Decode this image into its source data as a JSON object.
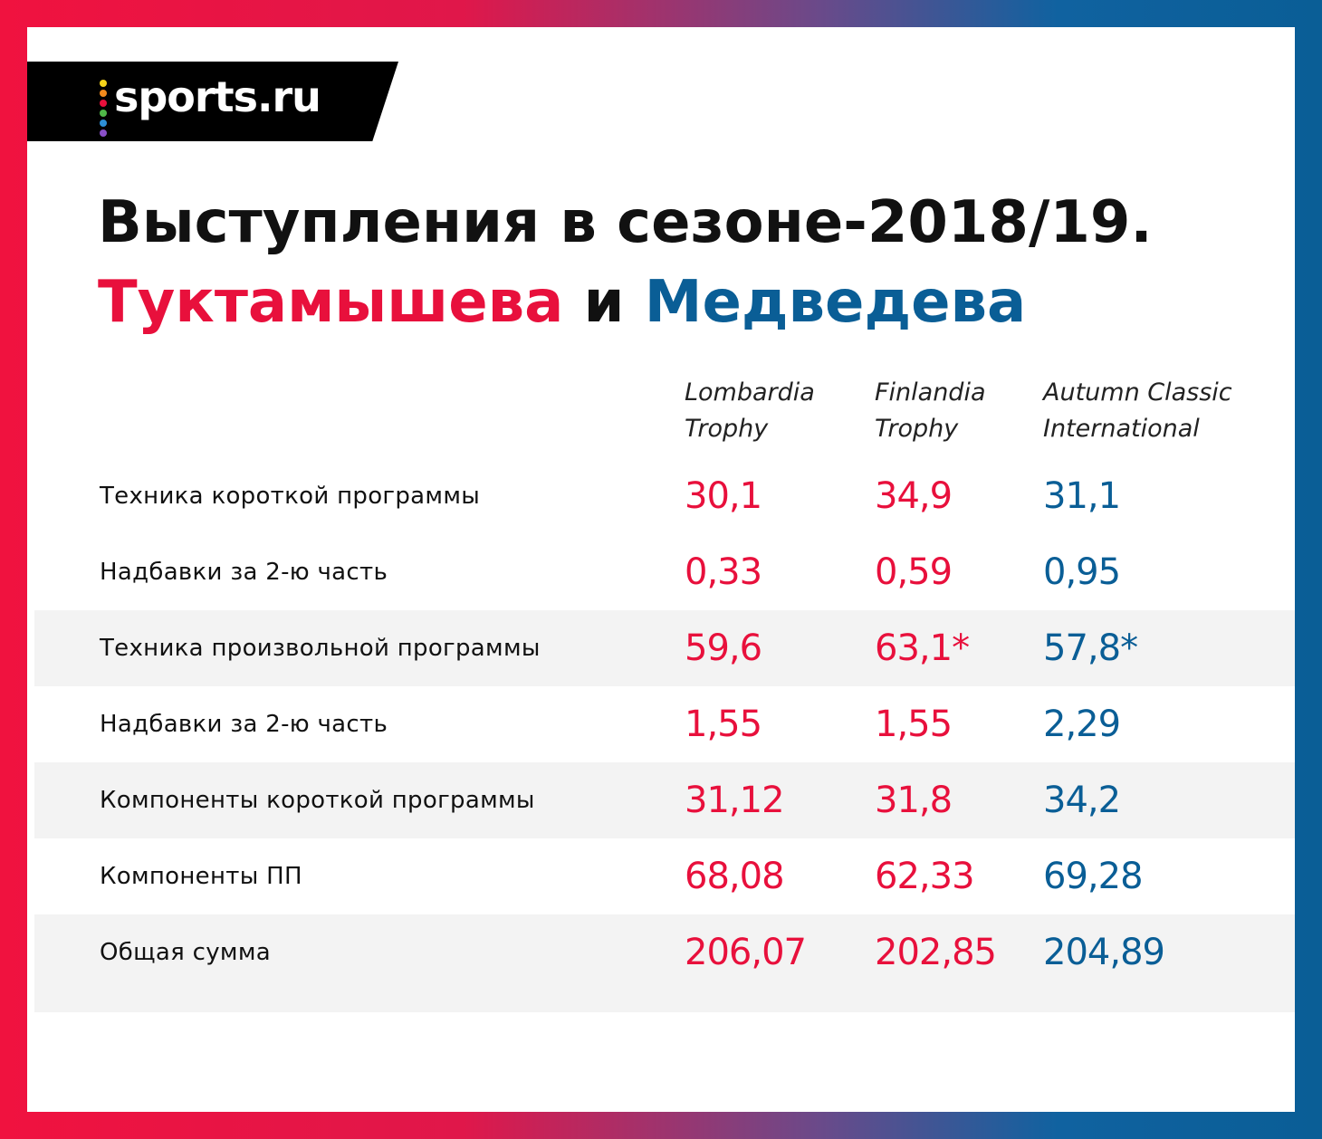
{
  "brand": {
    "name": "sports.ru",
    "dot_colors": [
      "#f5d31a",
      "#f28a1c",
      "#e8103c",
      "#4fb848",
      "#2d8fd6",
      "#8a4fc8"
    ]
  },
  "title": {
    "line1": "Выступления в сезоне-2018/19.",
    "name_a": "Туктамышева",
    "and": " и ",
    "name_b": "Медведева"
  },
  "colors": {
    "accent_a": "#e8103c",
    "accent_b": "#0a5e96"
  },
  "chart_data": {
    "type": "table",
    "columns": [
      {
        "line1": "Lombardia",
        "line2": "Trophy"
      },
      {
        "line1": "Finlandia",
        "line2": "Trophy"
      },
      {
        "line1": "Autumn Classic",
        "line2": "International"
      }
    ],
    "rows": [
      {
        "label": "Техника короткой программы",
        "values": [
          "30,1",
          "34,9",
          "31,1"
        ]
      },
      {
        "label": "Надбавки за 2-ю часть",
        "values": [
          "0,33",
          "0,59",
          "0,95"
        ]
      },
      {
        "label": "Техника произвольной программы",
        "values": [
          "59,6",
          "63,1*",
          "57,8*"
        ]
      },
      {
        "label": "Надбавки за 2-ю часть",
        "values": [
          "1,55",
          "1,55",
          "2,29"
        ]
      },
      {
        "label": "Компоненты короткой программы",
        "values": [
          "31,12",
          "31,8",
          "34,2"
        ]
      },
      {
        "label": "Компоненты ПП",
        "values": [
          "68,08",
          "62,33",
          "69,28"
        ]
      },
      {
        "label": "Общая сумма",
        "values": [
          "206,07",
          "202,85",
          "204,89"
        ]
      }
    ]
  }
}
